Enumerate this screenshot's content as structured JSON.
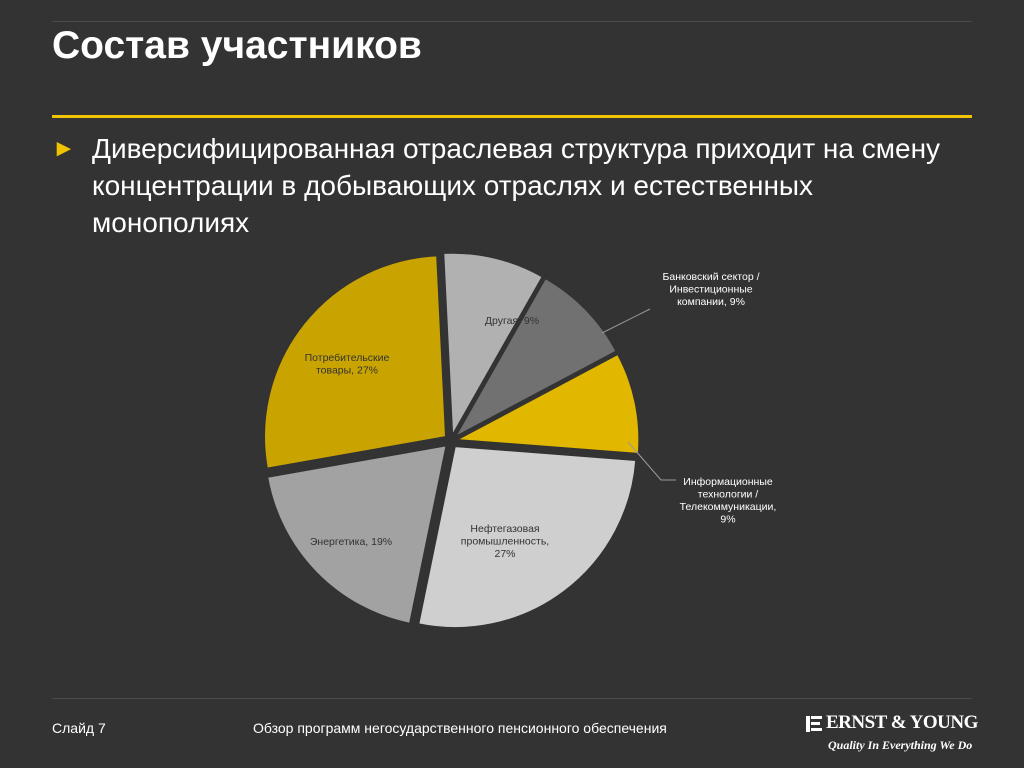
{
  "slide": {
    "title": "Состав участников",
    "bullet_text": "Диверсифицированная отраслевая структура приходит на смену концентрации в добывающих отраслях и естественных монополиях",
    "bullet_marker": "►"
  },
  "footer": {
    "slide_number": "Слайд 7",
    "title": "Обзор программ негосударственного пенсионного обеспечения"
  },
  "logo": {
    "name": "ERNST & YOUNG",
    "tagline": "Quality In Everything We Do"
  },
  "colors": {
    "background": "#333333",
    "accent": "#f0c300"
  },
  "chart_data": {
    "type": "pie",
    "title": "",
    "slices": [
      {
        "label_lines": [
          "Другая, 9%"
        ],
        "value": 9,
        "color": "#b1b1b1"
      },
      {
        "label_lines": [
          "Банковский сектор /",
          "Инвестиционные",
          "компании, 9%"
        ],
        "value": 9,
        "color": "#717171"
      },
      {
        "label_lines": [
          "Информационные",
          "технологии /",
          "Телекоммуникации,",
          "9%"
        ],
        "value": 9,
        "color": "#e2b700"
      },
      {
        "label_lines": [
          "Нефтегазовая",
          "промышленность,",
          "27%"
        ],
        "value": 27,
        "color": "#cfcfcf"
      },
      {
        "label_lines": [
          "Энергетика, 19%"
        ],
        "value": 19,
        "color": "#a2a2a2"
      },
      {
        "label_lines": [
          "Потребительские",
          "товары, 27%"
        ],
        "value": 27,
        "color": "#c9a400"
      }
    ]
  }
}
